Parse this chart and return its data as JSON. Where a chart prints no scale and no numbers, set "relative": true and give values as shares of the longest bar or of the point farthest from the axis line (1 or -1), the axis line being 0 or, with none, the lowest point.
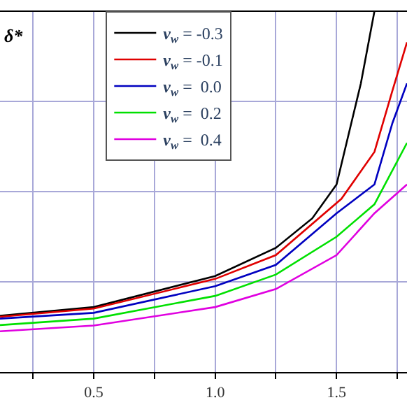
{
  "chart_data": {
    "type": "line",
    "relative": true,
    "ylabel": "δ*",
    "xlim": [
      0.114,
      1.79
    ],
    "xticks": [
      {
        "value": 0.25,
        "label": null
      },
      0.5,
      {
        "value": 0.75,
        "label": null
      },
      {
        "value": 1.0,
        "label": "1.0"
      },
      {
        "value": 1.25,
        "label": null
      },
      1.5,
      {
        "value": 1.75,
        "label": null
      }
    ],
    "grid": true,
    "legend": "top",
    "line_style": "solid",
    "marker": "none",
    "series": [
      {
        "name": "v$_{w}$ = -0.3",
        "color": "#000000",
        "x": [
          0.114,
          0.5,
          1.0,
          1.25,
          1.4,
          1.5,
          1.6,
          1.656
        ],
        "values": [
          0.156,
          0.18,
          0.266,
          0.344,
          0.426,
          0.52,
          0.8,
          1.0
        ]
      },
      {
        "name": "v$_{w}$ = -0.1",
        "color": "#e00000",
        "x": [
          0.114,
          0.5,
          1.0,
          1.25,
          1.52,
          1.656,
          1.73,
          1.79
        ],
        "values": [
          0.153,
          0.176,
          0.258,
          0.324,
          0.48,
          0.61,
          0.78,
          0.914
        ]
      },
      {
        "name": "v$_{w}$ =  0.0",
        "color": "#0000c0",
        "x": [
          0.114,
          0.5,
          1.0,
          1.25,
          1.5,
          1.656,
          1.73,
          1.79
        ],
        "values": [
          0.148,
          0.164,
          0.238,
          0.297,
          0.44,
          0.52,
          0.69,
          0.8
        ]
      },
      {
        "name": "v$_{w}$ =  0.2",
        "color": "#00e000",
        "x": [
          0.114,
          0.5,
          1.0,
          1.25,
          1.5,
          1.656,
          1.79
        ],
        "values": [
          0.13,
          0.148,
          0.211,
          0.27,
          0.375,
          0.465,
          0.635
        ]
      },
      {
        "name": "v$_{w}$ =  0.4",
        "color": "#e000e0",
        "x": [
          0.114,
          0.5,
          1.0,
          1.25,
          1.5,
          1.656,
          1.79
        ],
        "values": [
          0.113,
          0.129,
          0.18,
          0.23,
          0.324,
          0.44,
          0.52
        ]
      }
    ]
  }
}
